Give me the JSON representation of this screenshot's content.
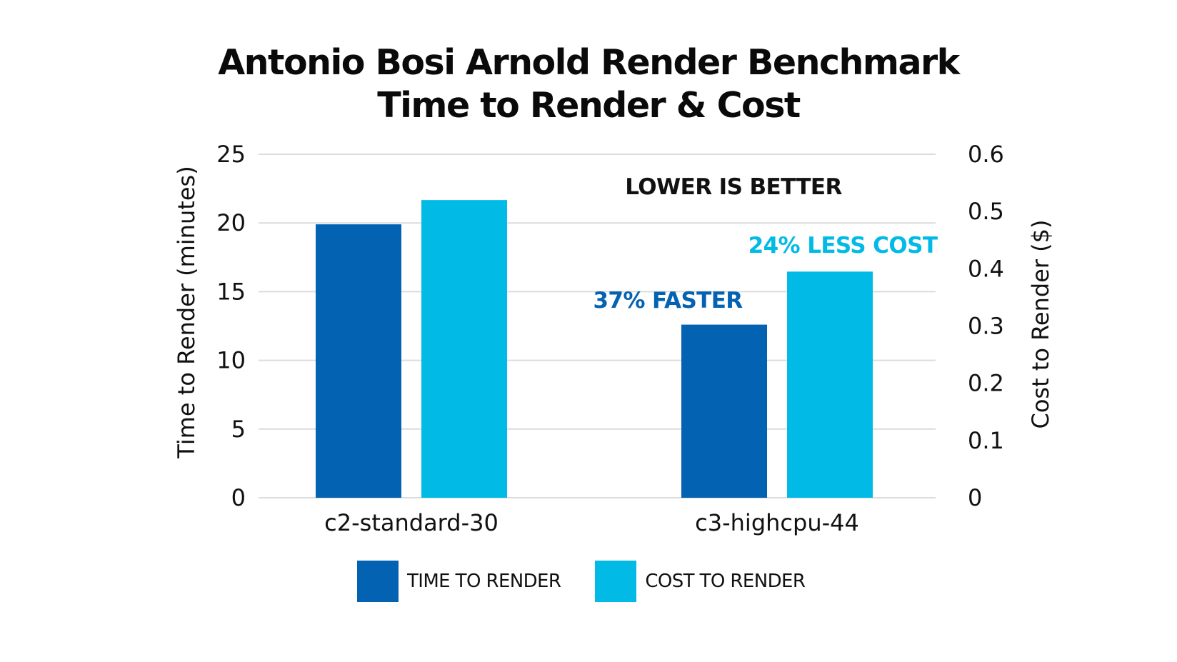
{
  "title": {
    "line1": "Antonio Bosi Arnold Render Benchmark",
    "line2": "Time to Render & Cost"
  },
  "chart_data": {
    "type": "bar",
    "categories": [
      "c2-standard-30",
      "c3-highcpu-44"
    ],
    "series": [
      {
        "name": "TIME TO RENDER",
        "axis": "left",
        "color": "#0462B3",
        "values": [
          19.9,
          12.6
        ]
      },
      {
        "name": "COST TO RENDER",
        "axis": "right",
        "color": "#02BAE6",
        "values": [
          0.52,
          0.395
        ]
      }
    ],
    "y_left": {
      "label": "Time to Render (minutes)",
      "ylim": [
        0,
        25
      ],
      "ticks": [
        "0",
        "5",
        "10",
        "15",
        "20",
        "25"
      ]
    },
    "y_right": {
      "label": "Cost to Render ($)",
      "ylim": [
        0,
        0.6
      ],
      "ticks": [
        "0",
        "0.1",
        "0.2",
        "0.3",
        "0.4",
        "0.5",
        "0.6"
      ]
    },
    "grid": true,
    "legend_position": "bottom",
    "annotations": [
      {
        "text": "LOWER IS BETTER",
        "color": "#111111"
      },
      {
        "text": "24% LESS COST",
        "color": "#02BAE6"
      },
      {
        "text": "37% FASTER",
        "color": "#0462B3"
      }
    ]
  }
}
